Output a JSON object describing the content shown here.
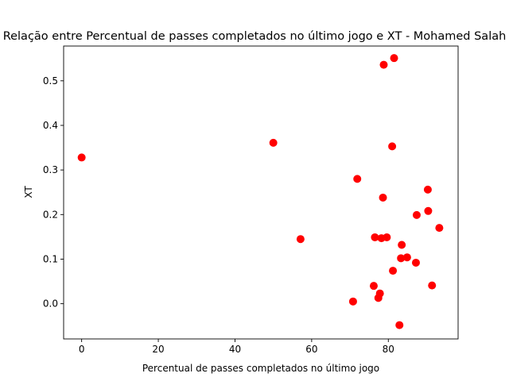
{
  "chart_data": {
    "type": "scatter",
    "title": "Relação entre Percentual de passes completados no último jogo e XT - Mohamed Salah",
    "xlabel": "Percentual de passes completados no último jogo",
    "ylabel": "XT",
    "xlim": [
      -4.7,
      98.2
    ],
    "ylim": [
      -0.079,
      0.578
    ],
    "xticks": [
      0,
      20,
      40,
      60,
      80
    ],
    "yticks": [
      0.0,
      0.1,
      0.2,
      0.3,
      0.4,
      0.5
    ],
    "xtick_labels": [
      "0",
      "20",
      "40",
      "60",
      "80"
    ],
    "ytick_labels": [
      "0.0",
      "0.1",
      "0.2",
      "0.3",
      "0.4",
      "0.5"
    ],
    "marker_color": "#ff0000",
    "points": [
      {
        "x": 0.0,
        "y": 0.328
      },
      {
        "x": 50.0,
        "y": 0.361
      },
      {
        "x": 57.1,
        "y": 0.145
      },
      {
        "x": 70.8,
        "y": 0.005
      },
      {
        "x": 71.9,
        "y": 0.28
      },
      {
        "x": 76.2,
        "y": 0.04
      },
      {
        "x": 76.5,
        "y": 0.149
      },
      {
        "x": 77.4,
        "y": 0.013
      },
      {
        "x": 77.8,
        "y": 0.023
      },
      {
        "x": 78.2,
        "y": 0.147
      },
      {
        "x": 78.6,
        "y": 0.238
      },
      {
        "x": 78.8,
        "y": 0.536
      },
      {
        "x": 79.6,
        "y": 0.149
      },
      {
        "x": 81.0,
        "y": 0.353
      },
      {
        "x": 81.2,
        "y": 0.074
      },
      {
        "x": 81.5,
        "y": 0.551
      },
      {
        "x": 82.9,
        "y": -0.048
      },
      {
        "x": 83.3,
        "y": 0.102
      },
      {
        "x": 83.5,
        "y": 0.132
      },
      {
        "x": 84.9,
        "y": 0.104
      },
      {
        "x": 87.2,
        "y": 0.092
      },
      {
        "x": 87.4,
        "y": 0.199
      },
      {
        "x": 90.3,
        "y": 0.256
      },
      {
        "x": 90.4,
        "y": 0.208
      },
      {
        "x": 91.4,
        "y": 0.041
      },
      {
        "x": 93.3,
        "y": 0.17
      }
    ]
  }
}
